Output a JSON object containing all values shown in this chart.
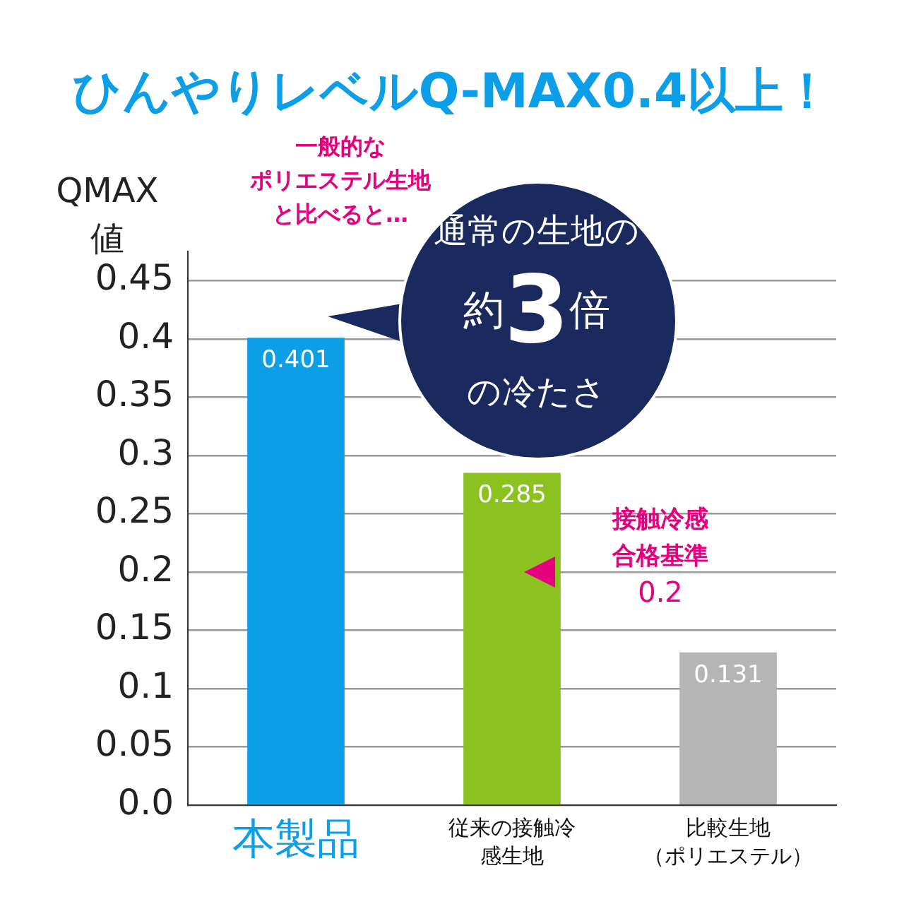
{
  "chart_data": {
    "type": "bar",
    "title": "ひんやりレベルQ-MAX0.4以上！",
    "ylabel": "QMAX値",
    "categories": [
      "本製品",
      "従来の接触冷感生地",
      "比較生地（ポリエステル）"
    ],
    "values": [
      0.401,
      0.285,
      0.131
    ],
    "colors": [
      "#0c9ee6",
      "#8cc21f",
      "#b5b5b5"
    ],
    "ylim": [
      0,
      0.475
    ],
    "yticks": [
      {
        "value": 0,
        "label": "0.0"
      },
      0.05,
      0.1,
      0.15,
      0.2,
      0.25,
      0.3,
      0.35,
      0.4,
      0.45
    ],
    "grid": "y",
    "data_labels": true,
    "legend": false,
    "annotations": [
      "一般的なポリエステル生地と比べると…",
      "通常の生地の約3倍の冷たさ",
      "接触冷感合格基準0.2"
    ]
  }
}
